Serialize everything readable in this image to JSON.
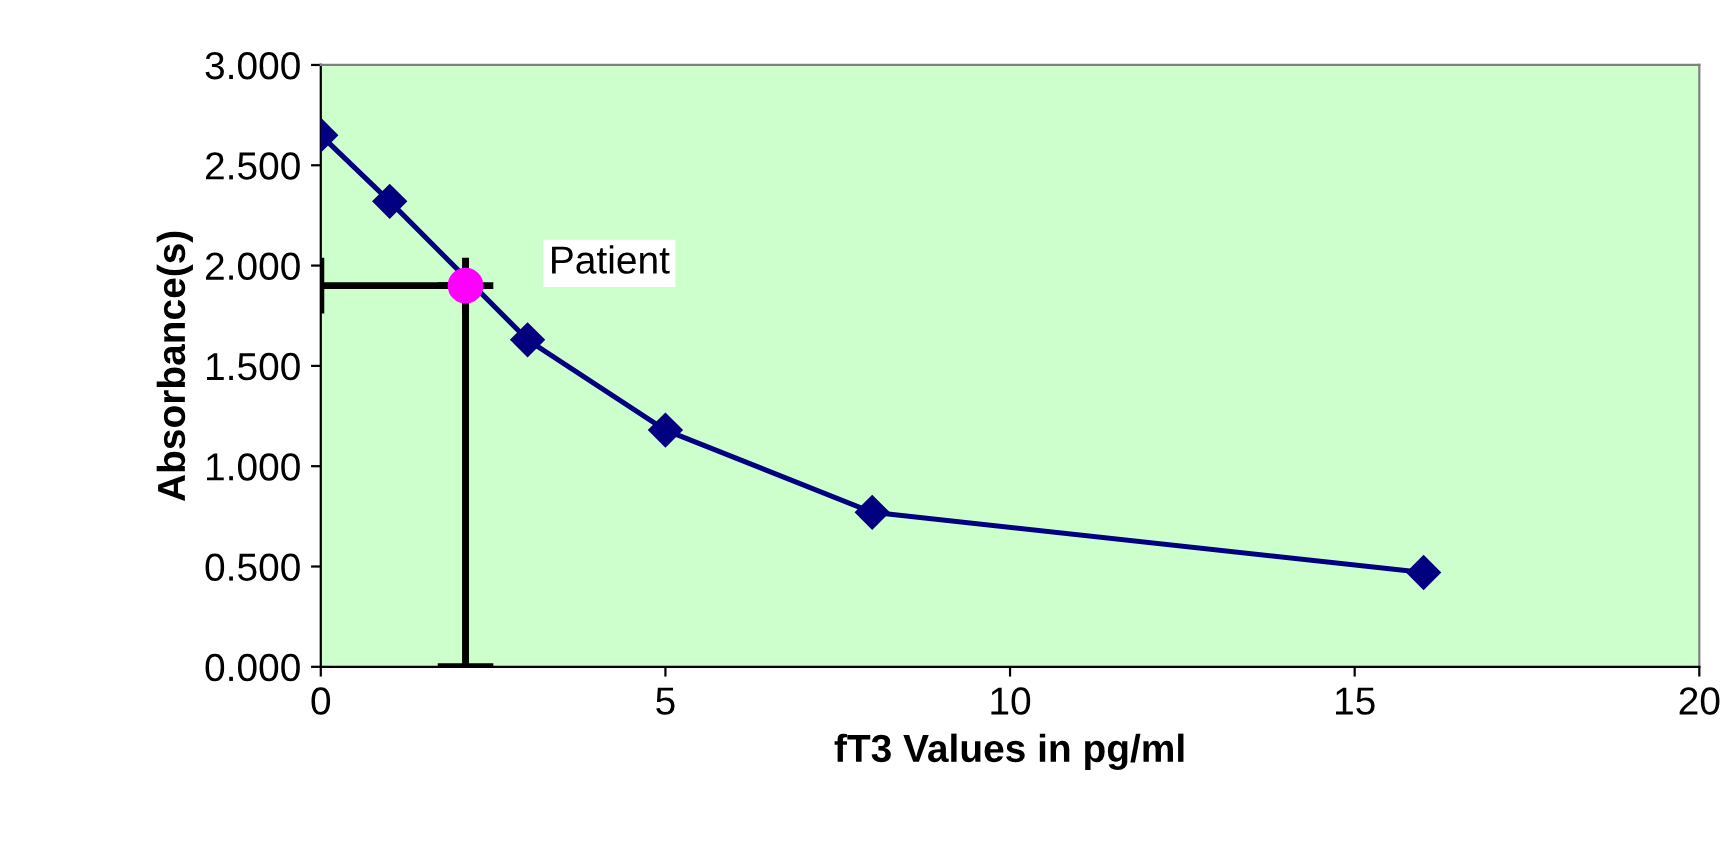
{
  "chart_data": {
    "type": "line",
    "xlabel": "fT3 Values in pg/ml",
    "ylabel": "Absorbance(s)",
    "xlim": [
      0,
      20
    ],
    "xticks": [
      0,
      5,
      10,
      15,
      20
    ],
    "ylim": [
      0,
      3
    ],
    "yticks": [
      {
        "value": 0,
        "label": "0.000"
      },
      {
        "value": 0.5,
        "label": "0.500"
      },
      {
        "value": 1,
        "label": "1.000"
      },
      {
        "value": 1.5,
        "label": "1.500"
      },
      {
        "value": 2,
        "label": "2.000"
      },
      {
        "value": 2.5,
        "label": "2.500"
      },
      {
        "value": 3,
        "label": "3.000"
      }
    ],
    "grid": false,
    "series": [
      {
        "color": "#000080",
        "marker": "diamond",
        "x": [
          0,
          1,
          3,
          5,
          8,
          16
        ],
        "values": [
          2.65,
          2.32,
          1.63,
          1.18,
          0.77,
          0.47
        ]
      },
      {
        "type": "scatter",
        "color": "#ff00ff",
        "marker": "circle",
        "x": [
          2.1
        ],
        "values": [
          1.9
        ],
        "errors": [
          [
            0,
            1.9
          ]
        ],
        "xerrors": [
          [
            0,
            2.1
          ]
        ]
      }
    ],
    "annotations": [
      {
        "text": "Patient",
        "x": 2.1,
        "y": 1.9
      }
    ]
  }
}
